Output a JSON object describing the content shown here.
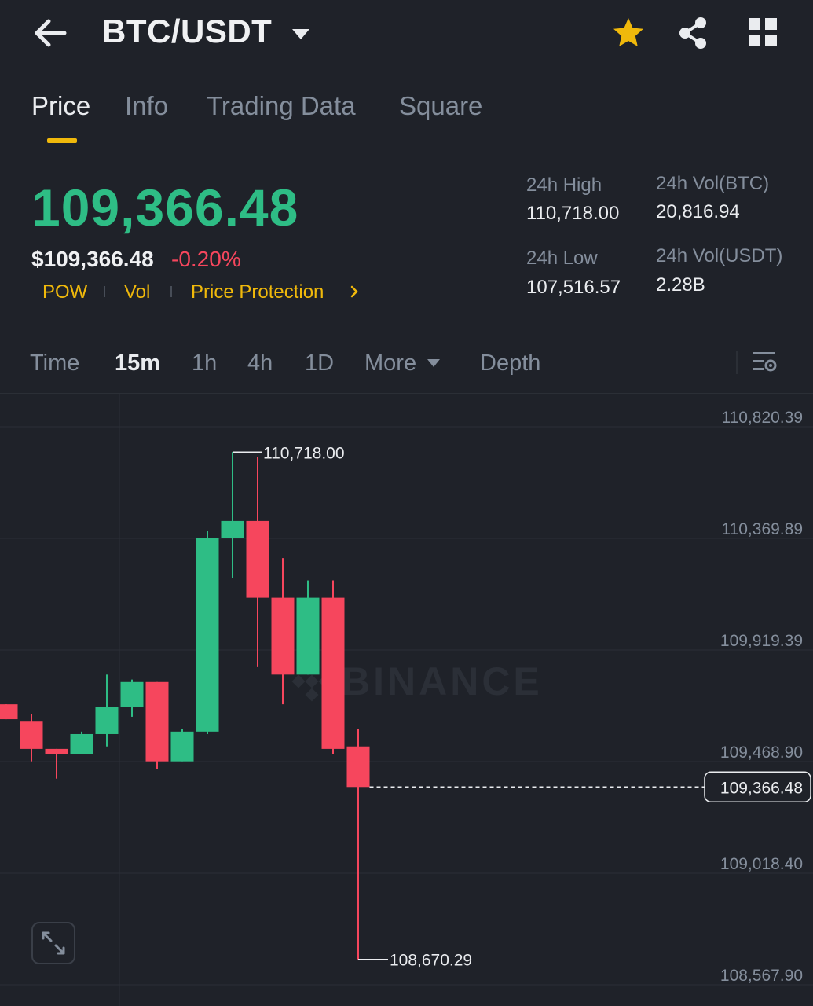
{
  "header": {
    "pair": "BTC/USDT",
    "icons": {
      "back": "arrow-left-icon",
      "dropdown": "caret-down-icon",
      "favorite": "star-icon",
      "share": "share-icon",
      "more": "grid-icon"
    },
    "favorite_color": "#f0b90b"
  },
  "tabs": [
    {
      "label": "Price",
      "active": true
    },
    {
      "label": "Info",
      "active": false
    },
    {
      "label": "Trading Data",
      "active": false
    },
    {
      "label": "Square",
      "active": false
    }
  ],
  "ticker": {
    "last_price": "109,366.48",
    "usd_price": "$109,366.48",
    "change": "-0.20%",
    "tags": [
      "POW",
      "Vol",
      "Price Protection"
    ],
    "stats": {
      "high_label": "24h High",
      "high_value": "110,718.00",
      "low_label": "24h Low",
      "low_value": "107,516.57",
      "vol_btc_label": "24h Vol(BTC)",
      "vol_btc_value": "20,816.94",
      "vol_usdt_label": "24h Vol(USDT)",
      "vol_usdt_value": "2.28B"
    }
  },
  "intervals": {
    "items": [
      "Time",
      "15m",
      "1h",
      "4h",
      "1D",
      "More",
      "Depth"
    ],
    "active": "15m"
  },
  "colors": {
    "up": "#2ebd85",
    "down": "#f6465d",
    "accent": "#f0b90b",
    "background": "#1f2229"
  },
  "watermark": "BINANCE",
  "chart_data": {
    "type": "candlestick",
    "y_axis_ticks": [
      "110,820.39",
      "110,369.89",
      "109,919.39",
      "109,468.90",
      "109,018.40",
      "108,567.90"
    ],
    "ylim": [
      108567.9,
      110820.39
    ],
    "last_price_label": "109,366.48",
    "last_price": 109366.48,
    "high_label": "110,718.00",
    "high": 110718.0,
    "low_label": "108,670.29",
    "low": 108670.29,
    "candles": [
      {
        "open": 109700,
        "high": 109700,
        "low": 109640,
        "close": 109640
      },
      {
        "open": 109630,
        "high": 109660,
        "low": 109470,
        "close": 109520
      },
      {
        "open": 109520,
        "high": 109520,
        "low": 109400,
        "close": 109500
      },
      {
        "open": 109500,
        "high": 109590,
        "low": 109500,
        "close": 109580
      },
      {
        "open": 109580,
        "high": 109820,
        "low": 109530,
        "close": 109690
      },
      {
        "open": 109690,
        "high": 109800,
        "low": 109650,
        "close": 109790
      },
      {
        "open": 109790,
        "high": 109790,
        "low": 109440,
        "close": 109470
      },
      {
        "open": 109470,
        "high": 109600,
        "low": 109470,
        "close": 109590
      },
      {
        "open": 109590,
        "high": 110400,
        "low": 109580,
        "close": 110370
      },
      {
        "open": 110370,
        "high": 110718,
        "low": 110210,
        "close": 110440
      },
      {
        "open": 110440,
        "high": 110700,
        "low": 109850,
        "close": 110130
      },
      {
        "open": 110130,
        "high": 110290,
        "low": 109700,
        "close": 109820
      },
      {
        "open": 109820,
        "high": 110200,
        "low": 109820,
        "close": 110130
      },
      {
        "open": 110130,
        "high": 110200,
        "low": 109500,
        "close": 109520
      },
      {
        "open": 109530,
        "high": 109600,
        "low": 108670.29,
        "close": 109366.48
      }
    ]
  }
}
